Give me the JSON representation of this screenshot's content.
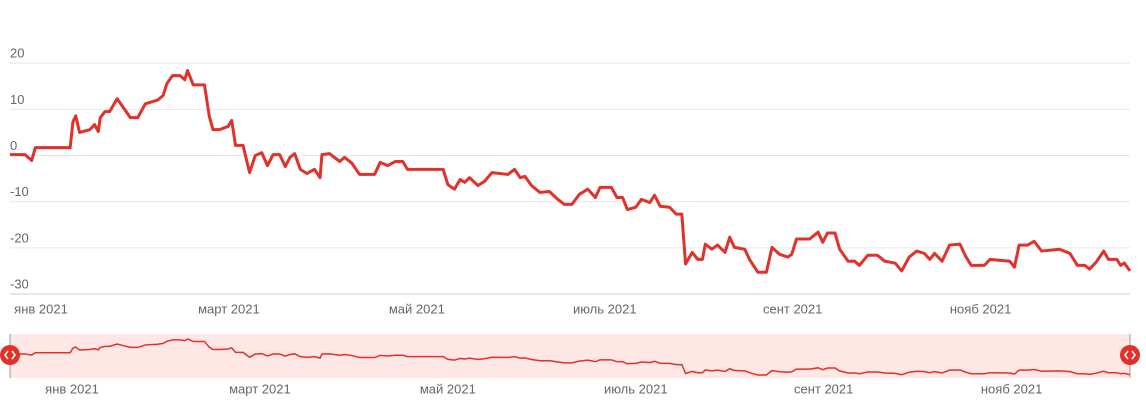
{
  "chart_data": {
    "type": "line",
    "x": [
      -0.33,
      -0.17,
      -0.1,
      -0.06,
      0.31,
      0.34,
      0.37,
      0.41,
      0.52,
      0.57,
      0.61,
      0.63,
      0.68,
      0.73,
      0.81,
      0.89,
      0.95,
      1.03,
      1.11,
      1.24,
      1.3,
      1.34,
      1.4,
      1.48,
      1.53,
      1.56,
      1.62,
      1.74,
      1.79,
      1.83,
      1.9,
      1.99,
      2.03,
      2.07,
      2.15,
      2.22,
      2.28,
      2.35,
      2.41,
      2.47,
      2.54,
      2.6,
      2.65,
      2.7,
      2.76,
      2.83,
      2.91,
      2.97,
      2.99,
      3.07,
      3.18,
      3.23,
      3.31,
      3.39,
      3.55,
      3.61,
      3.69,
      3.77,
      3.85,
      3.9,
      4.28,
      4.33,
      4.4,
      4.46,
      4.51,
      4.56,
      4.65,
      4.72,
      4.8,
      4.97,
      5.04,
      5.1,
      5.15,
      5.22,
      5.31,
      5.41,
      5.5,
      5.57,
      5.65,
      5.73,
      5.82,
      5.9,
      5.95,
      6.07,
      6.13,
      6.19,
      6.24,
      6.33,
      6.39,
      6.48,
      6.53,
      6.59,
      6.69,
      6.76,
      6.82,
      6.86,
      6.93,
      6.99,
      7.04,
      7.07,
      7.14,
      7.2,
      7.28,
      7.33,
      7.38,
      7.49,
      7.54,
      7.63,
      7.72,
      7.78,
      7.86,
      7.95,
      7.99,
      8.04,
      8.18,
      8.27,
      8.32,
      8.37,
      8.45,
      8.5,
      8.59,
      8.66,
      8.71,
      8.8,
      8.9,
      8.98,
      9.09,
      9.16,
      9.24,
      9.32,
      9.4,
      9.46,
      9.51,
      9.59,
      9.67,
      9.78,
      9.84,
      9.9,
      10.04,
      10.1,
      10.31,
      10.36,
      10.41,
      10.5,
      10.57,
      10.65,
      10.84,
      10.95,
      11.03,
      11.11,
      11.16,
      11.23,
      11.31,
      11.36,
      11.45,
      11.49,
      11.53,
      11.59
    ],
    "series": [
      {
        "color": "#e0312a",
        "values": [
          0.2,
          0.2,
          -1.1,
          1.7,
          1.7,
          7.3,
          8.6,
          5.0,
          5.6,
          6.7,
          5.2,
          8.2,
          9.5,
          9.5,
          12.3,
          10.0,
          8.2,
          8.2,
          11.2,
          12.0,
          13.0,
          15.6,
          17.3,
          17.3,
          16.4,
          18.4,
          15.3,
          15.3,
          8.6,
          5.6,
          5.6,
          6.3,
          7.6,
          2.2,
          2.2,
          -3.7,
          0.0,
          0.6,
          -2.2,
          0.2,
          0.2,
          -2.4,
          -0.4,
          0.4,
          -3.0,
          -3.9,
          -3.0,
          -4.8,
          0.2,
          0.4,
          -1.3,
          -0.4,
          -1.7,
          -4.1,
          -4.1,
          -1.5,
          -2.2,
          -1.3,
          -1.3,
          -3.0,
          -3.0,
          -6.3,
          -7.3,
          -5.2,
          -5.8,
          -4.8,
          -6.5,
          -5.6,
          -3.7,
          -4.1,
          -3.0,
          -4.8,
          -4.5,
          -6.5,
          -8.0,
          -7.8,
          -9.5,
          -10.6,
          -10.6,
          -8.4,
          -7.3,
          -9.1,
          -6.9,
          -6.9,
          -9.1,
          -9.1,
          -11.7,
          -11.2,
          -9.5,
          -10.2,
          -8.6,
          -11.0,
          -11.2,
          -12.7,
          -12.7,
          -23.5,
          -21.0,
          -22.5,
          -22.5,
          -19.2,
          -20.3,
          -19.4,
          -21.0,
          -17.7,
          -19.9,
          -20.3,
          -22.5,
          -25.3,
          -25.3,
          -19.9,
          -21.4,
          -22.0,
          -21.4,
          -18.1,
          -18.1,
          -16.6,
          -18.8,
          -16.8,
          -16.8,
          -20.3,
          -22.9,
          -22.9,
          -23.8,
          -21.6,
          -21.6,
          -22.9,
          -23.3,
          -25.0,
          -22.0,
          -20.7,
          -21.2,
          -22.5,
          -21.2,
          -22.9,
          -19.4,
          -19.2,
          -21.8,
          -23.8,
          -23.8,
          -22.5,
          -22.9,
          -24.2,
          -19.4,
          -19.4,
          -18.6,
          -20.7,
          -20.3,
          -21.2,
          -23.8,
          -23.8,
          -24.6,
          -23.1,
          -20.7,
          -22.5,
          -22.5,
          -23.8,
          -23.3,
          -25.0
        ]
      }
    ],
    "xlim": [
      -0.33,
      11.59
    ],
    "xticks": [
      {
        "value": 0,
        "label": "янв 2021"
      },
      {
        "value": 2,
        "label": "март 2021"
      },
      {
        "value": 4,
        "label": "май 2021"
      },
      {
        "value": 6,
        "label": "июль 2021"
      },
      {
        "value": 8,
        "label": "сент 2021"
      },
      {
        "value": 10,
        "label": "нояб 2021"
      }
    ],
    "ylim": [
      -30,
      30
    ],
    "yticks": [
      -30,
      -20,
      -10,
      0,
      10,
      20
    ],
    "grid": true
  }
}
